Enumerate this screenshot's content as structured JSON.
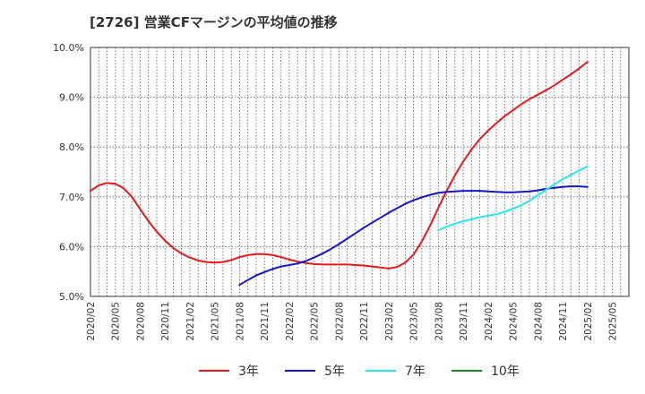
{
  "chart_data": {
    "type": "line",
    "title": "[2726]  営業CFマージンの平均値の推移",
    "xlabel": "",
    "ylabel": "",
    "y_tick_labels": [
      "5.0%",
      "6.0%",
      "7.0%",
      "8.0%",
      "9.0%",
      "10.0%"
    ],
    "ylim": [
      5.0,
      10.0
    ],
    "x_tick_labels": [
      "2020/02",
      "2020/05",
      "2020/08",
      "2020/11",
      "2021/02",
      "2021/05",
      "2021/08",
      "2021/11",
      "2022/02",
      "2022/05",
      "2022/08",
      "2022/11",
      "2023/02",
      "2023/05",
      "2023/08",
      "2023/11",
      "2024/02",
      "2024/05",
      "2024/08",
      "2024/11",
      "2025/02",
      "2025/05"
    ],
    "grid": true,
    "legend_position": "bottom",
    "series": [
      {
        "name": "3年",
        "color": "#e8191d",
        "x": [
          "2020/02",
          "2020/03",
          "2020/04",
          "2020/05",
          "2020/06",
          "2020/07",
          "2020/08",
          "2020/09",
          "2020/10",
          "2020/11",
          "2020/12",
          "2021/01",
          "2021/02",
          "2021/03",
          "2021/04",
          "2021/05",
          "2021/06",
          "2021/07",
          "2021/08",
          "2021/09",
          "2021/10",
          "2021/11",
          "2021/12",
          "2022/01",
          "2022/02",
          "2022/03",
          "2022/04",
          "2022/05",
          "2022/06",
          "2022/07",
          "2022/08",
          "2022/09",
          "2022/10",
          "2022/11",
          "2022/12",
          "2023/01",
          "2023/02",
          "2023/03",
          "2023/04",
          "2023/05",
          "2023/06",
          "2023/07",
          "2023/08",
          "2023/09",
          "2023/10",
          "2023/11",
          "2023/12",
          "2024/01",
          "2024/02",
          "2024/03",
          "2024/04",
          "2024/05",
          "2024/06",
          "2024/07",
          "2024/08",
          "2024/09",
          "2024/10",
          "2024/11",
          "2024/12",
          "2025/01",
          "2025/02"
        ],
        "values": [
          7.12,
          7.23,
          7.28,
          7.26,
          7.17,
          7.0,
          6.75,
          6.51,
          6.3,
          6.12,
          5.97,
          5.86,
          5.78,
          5.72,
          5.69,
          5.68,
          5.69,
          5.73,
          5.79,
          5.83,
          5.85,
          5.85,
          5.83,
          5.79,
          5.74,
          5.7,
          5.67,
          5.65,
          5.64,
          5.64,
          5.64,
          5.64,
          5.63,
          5.62,
          5.6,
          5.58,
          5.56,
          5.59,
          5.68,
          5.84,
          6.1,
          6.42,
          6.78,
          7.12,
          7.43,
          7.71,
          7.95,
          8.16,
          8.33,
          8.48,
          8.62,
          8.74,
          8.86,
          8.96,
          9.05,
          9.14,
          9.24,
          9.35,
          9.46,
          9.58,
          9.71
        ]
      },
      {
        "name": "5年",
        "color": "#1414c8",
        "x": [
          "2021/08",
          "2021/09",
          "2021/10",
          "2021/11",
          "2021/12",
          "2022/01",
          "2022/02",
          "2022/03",
          "2022/04",
          "2022/05",
          "2022/06",
          "2022/07",
          "2022/08",
          "2022/09",
          "2022/10",
          "2022/11",
          "2022/12",
          "2023/01",
          "2023/02",
          "2023/03",
          "2023/04",
          "2023/05",
          "2023/06",
          "2023/07",
          "2023/08",
          "2023/09",
          "2023/10",
          "2023/11",
          "2023/12",
          "2024/01",
          "2024/02",
          "2024/03",
          "2024/04",
          "2024/05",
          "2024/06",
          "2024/07",
          "2024/08",
          "2024/09",
          "2024/10",
          "2024/11",
          "2024/12",
          "2025/01",
          "2025/02"
        ],
        "values": [
          5.23,
          5.33,
          5.42,
          5.49,
          5.55,
          5.6,
          5.63,
          5.66,
          5.71,
          5.78,
          5.86,
          5.95,
          6.05,
          6.16,
          6.27,
          6.38,
          6.48,
          6.58,
          6.68,
          6.77,
          6.86,
          6.93,
          6.99,
          7.04,
          7.08,
          7.1,
          7.11,
          7.12,
          7.12,
          7.12,
          7.11,
          7.1,
          7.09,
          7.09,
          7.1,
          7.11,
          7.13,
          7.16,
          7.18,
          7.2,
          7.21,
          7.21,
          7.2
        ]
      },
      {
        "name": "7年",
        "color": "#28e6eb",
        "x": [
          "2023/08",
          "2023/09",
          "2023/10",
          "2023/11",
          "2023/12",
          "2024/01",
          "2024/02",
          "2024/03",
          "2024/04",
          "2024/05",
          "2024/06",
          "2024/07",
          "2024/08",
          "2024/09",
          "2024/10",
          "2024/11",
          "2024/12",
          "2025/01",
          "2025/02"
        ],
        "values": [
          6.33,
          6.4,
          6.46,
          6.51,
          6.55,
          6.59,
          6.62,
          6.65,
          6.7,
          6.76,
          6.83,
          6.92,
          7.03,
          7.14,
          7.25,
          7.35,
          7.44,
          7.53,
          7.61
        ]
      },
      {
        "name": "10年",
        "color": "#1a8a1a",
        "x": [],
        "values": []
      }
    ]
  }
}
